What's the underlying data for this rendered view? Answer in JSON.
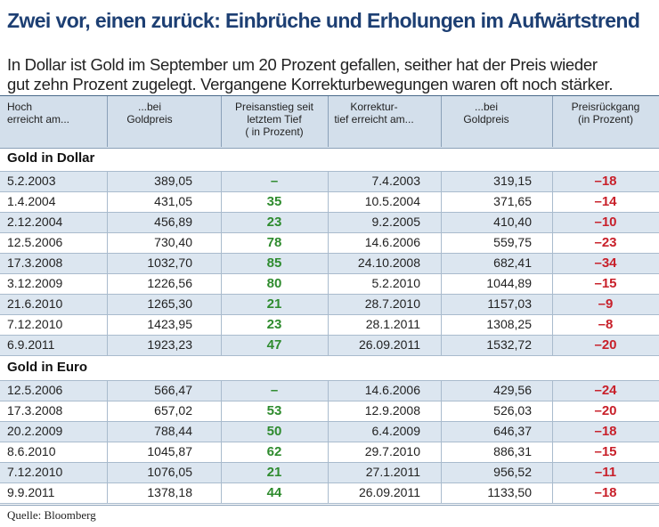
{
  "title": "Zwei vor, einen zurück: Einbrüche und Erholungen im Aufwärtstrend",
  "subtitle": [
    "In Dollar ist Gold im September um 20 Prozent gefallen, seither hat der Preis wieder",
    "gut zehn Prozent zugelegt. Vergangene Korrekturbewegungen waren oft noch stärker."
  ],
  "table": {
    "headers": [
      [
        "Hoch",
        "erreicht am..."
      ],
      [
        "...bei",
        "Goldpreis"
      ],
      [
        "Preisanstieg seit",
        "letztem Tief",
        "( in Prozent)"
      ],
      [
        "Korrektur-",
        "tief erreicht am..."
      ],
      [
        "...bei",
        "Goldpreis"
      ],
      [
        "Preisrückgang",
        "(in Prozent)"
      ]
    ],
    "sections": [
      {
        "title": "Gold in Dollar",
        "rows": [
          [
            "5.2.2003",
            "389,05",
            "–",
            "7.4.2003",
            "319,15",
            "–18"
          ],
          [
            "1.4.2004",
            "431,05",
            "35",
            "10.5.2004",
            "371,65",
            "–14"
          ],
          [
            "2.12.2004",
            "456,89",
            "23",
            "9.2.2005",
            "410,40",
            "–10"
          ],
          [
            "12.5.2006",
            "730,40",
            "78",
            "14.6.2006",
            "559,75",
            "–23"
          ],
          [
            "17.3.2008",
            "1032,70",
            "85",
            "24.10.2008",
            "682,41",
            "–34"
          ],
          [
            "3.12.2009",
            "1226,56",
            "80",
            "5.2.2010",
            "1044,89",
            "–15"
          ],
          [
            "21.6.2010",
            "1265,30",
            "21",
            "28.7.2010",
            "1157,03",
            "–9"
          ],
          [
            "7.12.2010",
            "1423,95",
            "23",
            "28.1.2011",
            "1308,25",
            "–8"
          ],
          [
            "6.9.2011",
            "1923,23",
            "47",
            "26.09.2011",
            "1532,72",
            "–20"
          ]
        ]
      },
      {
        "title": "Gold in Euro",
        "rows": [
          [
            "12.5.2006",
            "566,47",
            "–",
            "14.6.2006",
            "429,56",
            "–24"
          ],
          [
            "17.3.2008",
            "657,02",
            "53",
            "12.9.2008",
            "526,03",
            "–20"
          ],
          [
            "20.2.2009",
            "788,44",
            "50",
            "6.4.2009",
            "646,37",
            "–18"
          ],
          [
            "8.6.2010",
            "1045,87",
            "62",
            "29.7.2010",
            "886,31",
            "–15"
          ],
          [
            "7.12.2010",
            "1076,05",
            "21",
            "27.1.2011",
            "956,52",
            "–11"
          ],
          [
            "9.9.2011",
            "1378,18",
            "44",
            "26.09.2011",
            "1133,50",
            "–18"
          ]
        ]
      }
    ]
  },
  "source": "Quelle: Bloomberg"
}
